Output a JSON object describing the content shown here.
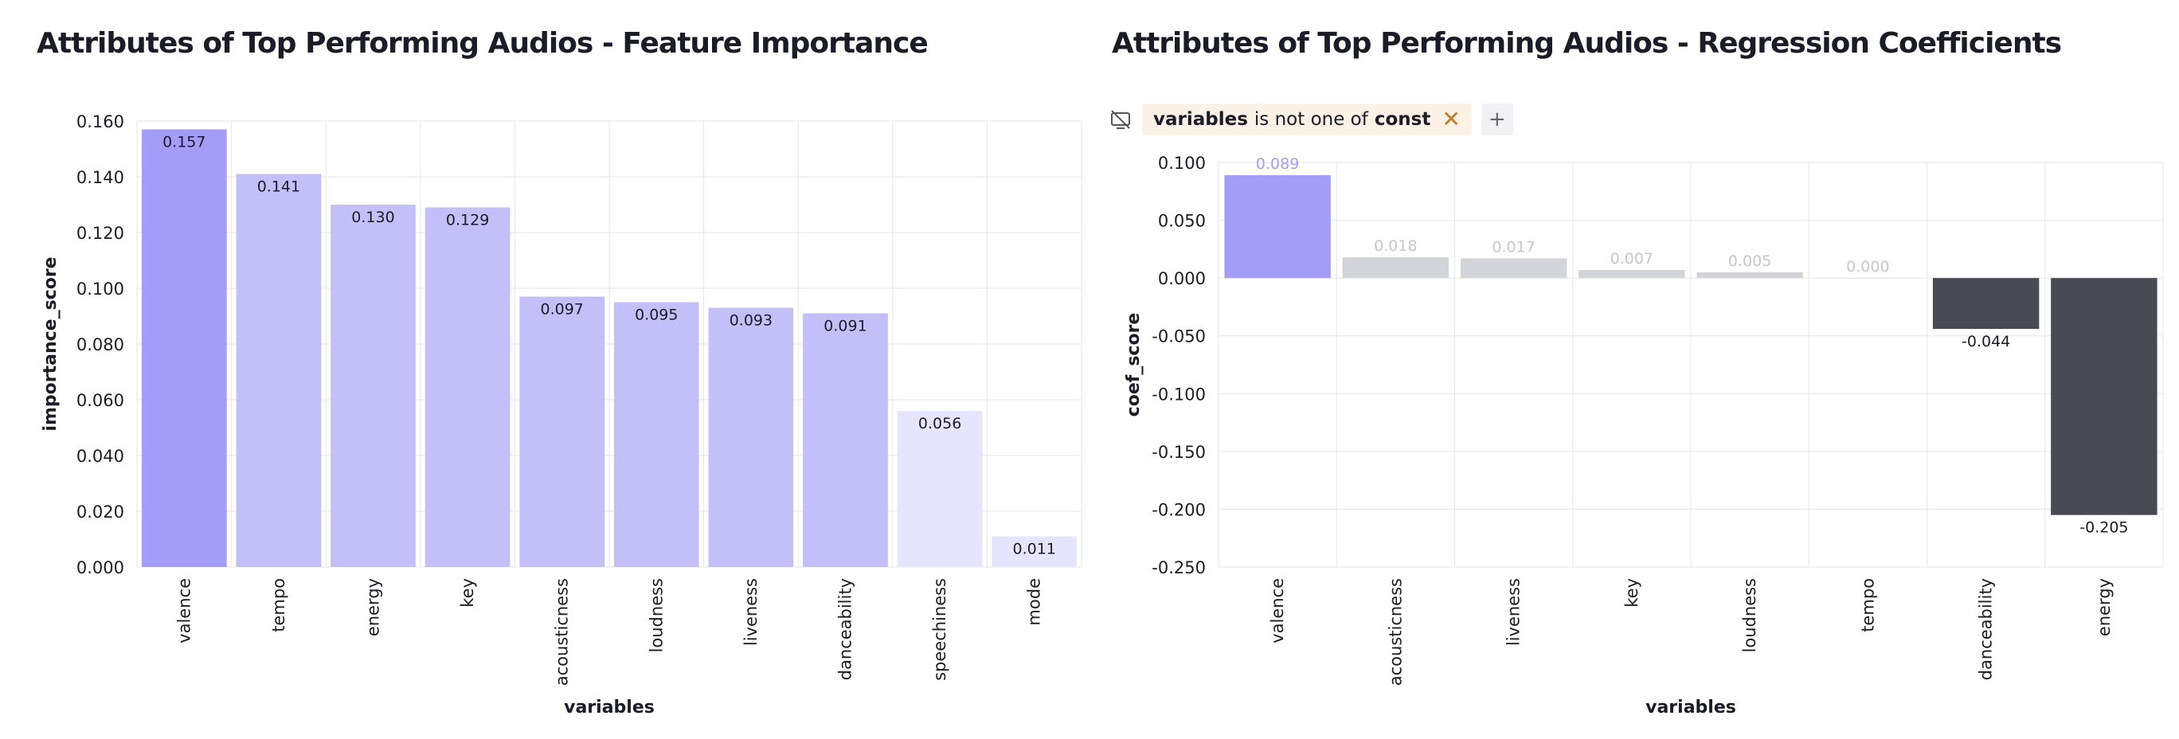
{
  "left_chart": {
    "title": "Attributes of Top Performing Audios - Feature Importance"
  },
  "right_chart": {
    "title": "Attributes of Top Performing Audios - Regression Coefficients"
  },
  "filter": {
    "icon": "chart-off-icon",
    "field": "variables",
    "operator": "is not one of",
    "value": "const",
    "remove_icon": "close-icon",
    "add_label": "+"
  },
  "colors": {
    "bar_strong": "#a49df7",
    "bar_mid": "#c3bff8",
    "bar_light": "#e7e5fd",
    "neutral_bar": "#d3d4d9",
    "neutral_label": "#c6c7cd",
    "negative_bar": "#4a4a55",
    "grid": "#e6e6ea"
  },
  "chart_data": [
    {
      "type": "bar",
      "title": "Attributes of Top Performing Audios - Feature Importance",
      "xlabel": "variables",
      "ylabel": "importance_score",
      "categories": [
        "valence",
        "tempo",
        "energy",
        "key",
        "acousticness",
        "loudness",
        "liveness",
        "danceability",
        "speechiness",
        "mode"
      ],
      "values": [
        0.157,
        0.141,
        0.13,
        0.129,
        0.097,
        0.095,
        0.093,
        0.091,
        0.056,
        0.011
      ],
      "labels": [
        "0.157",
        "0.141",
        "0.130",
        "0.129",
        "0.097",
        "0.095",
        "0.093",
        "0.091",
        "0.056",
        "0.011"
      ],
      "ylim": [
        0,
        0.16
      ],
      "yticks": [
        "0.000",
        "0.020",
        "0.040",
        "0.060",
        "0.080",
        "0.100",
        "0.120",
        "0.140",
        "0.160"
      ],
      "grid": true
    },
    {
      "type": "bar",
      "title": "Attributes of Top Performing Audios - Regression Coefficients",
      "xlabel": "variables",
      "ylabel": "coef_score",
      "categories": [
        "valence",
        "acousticness",
        "liveness",
        "key",
        "loudness",
        "tempo",
        "danceability",
        "energy"
      ],
      "values": [
        0.089,
        0.018,
        0.017,
        0.007,
        0.005,
        0.0,
        -0.044,
        -0.205
      ],
      "labels": [
        "0.089",
        "0.018",
        "0.017",
        "0.007",
        "0.005",
        "0.000",
        "-0.044",
        "-0.205"
      ],
      "ylim": [
        -0.25,
        0.1
      ],
      "yticks": [
        "-0.250",
        "-0.200",
        "-0.150",
        "-0.100",
        "-0.050",
        "0.000",
        "0.050",
        "0.100"
      ],
      "grid": true
    }
  ]
}
